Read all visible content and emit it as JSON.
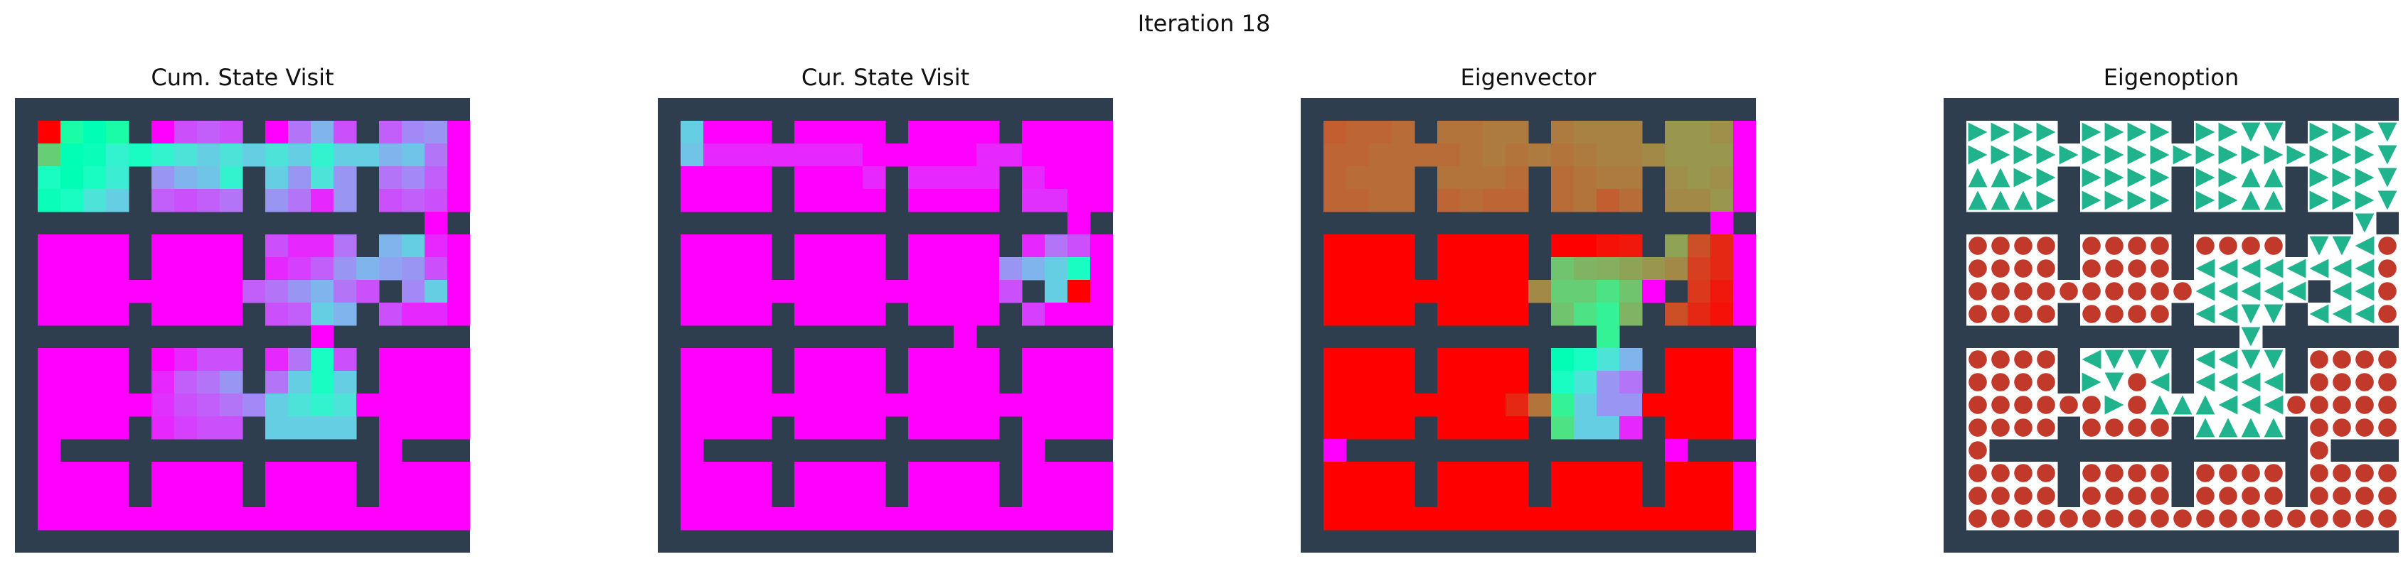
{
  "figure": {
    "suptitle": "Iteration 18"
  },
  "colors": {
    "wall": "#2f3e4f",
    "background": "#ffffff",
    "option_marker": "#1fb38e",
    "terminate_marker": "#c0392b"
  },
  "chart_data": [
    {
      "type": "heatmap",
      "title": "Cum. State Visit",
      "colormap": "rainbow",
      "grid": {
        "rows": 20,
        "cols": 20
      },
      "values": [
        [
          0,
          0,
          0,
          0,
          0,
          0,
          0,
          0,
          0,
          0,
          0,
          0,
          0,
          0,
          0,
          0,
          0,
          0,
          0,
          0
        ],
        [
          0,
          1.0,
          0.55,
          0.5,
          0.55,
          0,
          0,
          0.1,
          0.12,
          0.1,
          0,
          0,
          0.15,
          0.25,
          0.1,
          0,
          0.12,
          0.18,
          0.2,
          0
        ],
        [
          0,
          0.7,
          0.5,
          0.48,
          0.4,
          0.45,
          0.4,
          0.35,
          0.3,
          0.35,
          0.3,
          0.35,
          0.3,
          0.4,
          0.3,
          0.3,
          0.25,
          0.28,
          0.15,
          0
        ],
        [
          0,
          0.45,
          0.5,
          0.45,
          0.38,
          0.3,
          0.2,
          0.25,
          0.28,
          0.4,
          0.45,
          0.3,
          0.2,
          0.35,
          0.2,
          0.2,
          0.15,
          0.18,
          0.12,
          0
        ],
        [
          0,
          0.48,
          0.45,
          0.35,
          0.3,
          0,
          0.12,
          0.1,
          0.12,
          0.15,
          0,
          0.2,
          0.15,
          0.05,
          0.2,
          0.15,
          0.1,
          0.12,
          0.1,
          0
        ],
        [
          0,
          0,
          0,
          0,
          0,
          0,
          0,
          0,
          0,
          0,
          0,
          0,
          0,
          0,
          0,
          0,
          0.05,
          0.25,
          0,
          0
        ],
        [
          0,
          0,
          0,
          0,
          0,
          0,
          0,
          0,
          0,
          0,
          0,
          0.1,
          0.05,
          0.05,
          0.15,
          0.2,
          0.25,
          0.3,
          0.05,
          0
        ],
        [
          0,
          0,
          0,
          0,
          0,
          0,
          0,
          0,
          0,
          0,
          0,
          0.05,
          0.08,
          0.12,
          0.2,
          0.25,
          0.22,
          0.2,
          0.1,
          0
        ],
        [
          0,
          0,
          0,
          0,
          0,
          0,
          0,
          0,
          0,
          0,
          0.12,
          0.15,
          0.2,
          0.25,
          0.15,
          0.1,
          0.15,
          0.18,
          0.3,
          0
        ],
        [
          0,
          0,
          0,
          0,
          0,
          0,
          0,
          0,
          0,
          0,
          0,
          0.1,
          0.12,
          0.3,
          0.25,
          0,
          0.1,
          0.05,
          0.05,
          0
        ],
        [
          0,
          0,
          0,
          0,
          0,
          0,
          0,
          0,
          0,
          0,
          0,
          0,
          0,
          0,
          0,
          0,
          0,
          0,
          0,
          0
        ],
        [
          0,
          0,
          0,
          0,
          0,
          0,
          0,
          0.05,
          0.1,
          0.1,
          0,
          0.05,
          0.15,
          0.45,
          0.1,
          0,
          0,
          0,
          0,
          0
        ],
        [
          0,
          0,
          0,
          0,
          0,
          0,
          0.05,
          0.12,
          0.15,
          0.2,
          0,
          0.15,
          0.3,
          0.45,
          0.3,
          0,
          0,
          0,
          0,
          0
        ],
        [
          0,
          0,
          0,
          0,
          0,
          0,
          0.06,
          0.1,
          0.12,
          0.15,
          0.18,
          0.3,
          0.35,
          0.4,
          0.35,
          0,
          0,
          0,
          0,
          0
        ],
        [
          0,
          0,
          0,
          0,
          0,
          0,
          0.05,
          0.08,
          0.1,
          0.1,
          0,
          0.3,
          0.3,
          0.3,
          0.3,
          0,
          0,
          0,
          0,
          0
        ],
        [
          0,
          0,
          0,
          0,
          0,
          0,
          0,
          0,
          0,
          0,
          0,
          0,
          0,
          0,
          0,
          0,
          0,
          0,
          0,
          0
        ],
        [
          0,
          0,
          0,
          0,
          0,
          0,
          0,
          0,
          0,
          0,
          0,
          0,
          0,
          0,
          0,
          0,
          0,
          0,
          0,
          0
        ],
        [
          0,
          0,
          0,
          0,
          0,
          0,
          0,
          0,
          0,
          0,
          0,
          0,
          0,
          0,
          0,
          0,
          0,
          0,
          0,
          0
        ],
        [
          0,
          0,
          0,
          0,
          0,
          0,
          0,
          0,
          0,
          0,
          0,
          0,
          0,
          0,
          0,
          0,
          0,
          0,
          0,
          0
        ],
        [
          0,
          0,
          0,
          0,
          0,
          0,
          0,
          0,
          0,
          0,
          0,
          0,
          0,
          0,
          0,
          0,
          0,
          0,
          0,
          0
        ]
      ]
    },
    {
      "type": "heatmap",
      "title": "Cur. State Visit",
      "colormap": "rainbow",
      "grid": {
        "rows": 20,
        "cols": 20
      },
      "values": [
        [
          0,
          0,
          0,
          0,
          0,
          0,
          0,
          0,
          0,
          0,
          0,
          0,
          0,
          0,
          0,
          0,
          0,
          0,
          0,
          0
        ],
        [
          0,
          0.3,
          0,
          0,
          0,
          0,
          0,
          0,
          0,
          0,
          0,
          0,
          0,
          0,
          0,
          0,
          0,
          0,
          0,
          0
        ],
        [
          0,
          0.28,
          0.05,
          0.05,
          0.05,
          0.05,
          0.05,
          0.05,
          0.05,
          0,
          0,
          0,
          0,
          0,
          0.05,
          0.05,
          0,
          0,
          0,
          0
        ],
        [
          0,
          0,
          0,
          0,
          0,
          0,
          0,
          0,
          0,
          0.05,
          0.05,
          0.05,
          0.05,
          0.05,
          0.05,
          0.05,
          0.05,
          0,
          0,
          0
        ],
        [
          0,
          0,
          0,
          0,
          0,
          0,
          0,
          0,
          0,
          0,
          0,
          0,
          0,
          0,
          0,
          0,
          0.06,
          0.06,
          0,
          0
        ],
        [
          0,
          0,
          0,
          0,
          0,
          0,
          0,
          0,
          0,
          0,
          0,
          0,
          0,
          0,
          0,
          0,
          0,
          0.1,
          0,
          0
        ],
        [
          0,
          0,
          0,
          0,
          0,
          0,
          0,
          0,
          0,
          0,
          0,
          0,
          0,
          0,
          0,
          0,
          0.05,
          0.15,
          0.1,
          0
        ],
        [
          0,
          0,
          0,
          0,
          0,
          0,
          0,
          0,
          0,
          0,
          0,
          0,
          0,
          0,
          0,
          0.2,
          0.25,
          0.3,
          0.45,
          0
        ],
        [
          0,
          0,
          0,
          0,
          0,
          0,
          0,
          0,
          0,
          0,
          0,
          0,
          0,
          0,
          0,
          0.1,
          0.3,
          0.3,
          1.0,
          0
        ],
        [
          0,
          0,
          0,
          0,
          0,
          0,
          0,
          0,
          0,
          0,
          0,
          0,
          0,
          0,
          0,
          0,
          0.08,
          0,
          0,
          0
        ],
        [
          0,
          0,
          0,
          0,
          0,
          0,
          0,
          0,
          0,
          0,
          0,
          0,
          0,
          0,
          0,
          0,
          0,
          0,
          0,
          0
        ],
        [
          0,
          0,
          0,
          0,
          0,
          0,
          0,
          0,
          0,
          0,
          0,
          0,
          0,
          0,
          0,
          0,
          0,
          0,
          0,
          0
        ],
        [
          0,
          0,
          0,
          0,
          0,
          0,
          0,
          0,
          0,
          0,
          0,
          0,
          0,
          0,
          0,
          0,
          0,
          0,
          0,
          0
        ],
        [
          0,
          0,
          0,
          0,
          0,
          0,
          0,
          0,
          0,
          0,
          0,
          0,
          0,
          0,
          0,
          0,
          0,
          0,
          0,
          0
        ],
        [
          0,
          0,
          0,
          0,
          0,
          0,
          0,
          0,
          0,
          0,
          0,
          0,
          0,
          0,
          0,
          0,
          0,
          0,
          0,
          0
        ],
        [
          0,
          0,
          0,
          0,
          0,
          0,
          0,
          0,
          0,
          0,
          0,
          0,
          0,
          0,
          0,
          0,
          0,
          0,
          0,
          0
        ],
        [
          0,
          0,
          0,
          0,
          0,
          0,
          0,
          0,
          0,
          0,
          0,
          0,
          0,
          0,
          0,
          0,
          0,
          0,
          0,
          0
        ],
        [
          0,
          0,
          0,
          0,
          0,
          0,
          0,
          0,
          0,
          0,
          0,
          0,
          0,
          0,
          0,
          0,
          0,
          0,
          0,
          0
        ],
        [
          0,
          0,
          0,
          0,
          0,
          0,
          0,
          0,
          0,
          0,
          0,
          0,
          0,
          0,
          0,
          0,
          0,
          0,
          0,
          0
        ],
        [
          0,
          0,
          0,
          0,
          0,
          0,
          0,
          0,
          0,
          0,
          0,
          0,
          0,
          0,
          0,
          0,
          0,
          0,
          0,
          0
        ]
      ]
    },
    {
      "type": "heatmap",
      "title": "Eigenvector",
      "colormap": "rainbow",
      "grid": {
        "rows": 20,
        "cols": 20
      },
      "values": [
        [
          0,
          0,
          0,
          0,
          0,
          0,
          0,
          0,
          0,
          0,
          0,
          0,
          0,
          0,
          0,
          0,
          0,
          0,
          0,
          0
        ],
        [
          0,
          0.88,
          0.87,
          0.87,
          0.86,
          0,
          0.85,
          0.85,
          0.84,
          0.84,
          0,
          0.84,
          0.83,
          0.83,
          0.83,
          0,
          0.8,
          0.8,
          0.81,
          0
        ],
        [
          0,
          0.87,
          0.87,
          0.86,
          0.86,
          0.86,
          0.86,
          0.85,
          0.84,
          0.85,
          0.84,
          0.85,
          0.84,
          0.83,
          0.83,
          0.82,
          0.8,
          0.8,
          0.8,
          0
        ],
        [
          0,
          0.87,
          0.86,
          0.86,
          0.86,
          0.86,
          0.85,
          0.85,
          0.85,
          0.86,
          0.88,
          0.86,
          0.85,
          0.84,
          0.84,
          0.82,
          0.81,
          0.8,
          0.81,
          0
        ],
        [
          0,
          0.87,
          0.87,
          0.86,
          0.86,
          0,
          0.87,
          0.86,
          0.87,
          0.87,
          0,
          0.86,
          0.85,
          0.88,
          0.86,
          0,
          0.82,
          0.82,
          0.8,
          0
        ],
        [
          0,
          0,
          0,
          0,
          0,
          0,
          0,
          0,
          0,
          0,
          0,
          0,
          0,
          0,
          0,
          0,
          0,
          0.78,
          0,
          0
        ],
        [
          0,
          1.0,
          1.0,
          1.0,
          1.0,
          0,
          1.0,
          1.0,
          1.0,
          1.0,
          0,
          1.0,
          1.0,
          0.98,
          0.97,
          0,
          0.78,
          0.9,
          0.95,
          0
        ],
        [
          0,
          1.0,
          1.0,
          1.0,
          1.0,
          0,
          1.0,
          1.0,
          1.0,
          1.0,
          0,
          0.72,
          0.75,
          0.76,
          0.78,
          0.8,
          0.82,
          0.92,
          0.95,
          0
        ],
        [
          0,
          1.0,
          1.0,
          1.0,
          1.0,
          1.0,
          1.0,
          1.0,
          1.0,
          1.0,
          0.82,
          0.7,
          0.7,
          0.65,
          0.72,
          0,
          0.85,
          0.93,
          0.97,
          0
        ],
        [
          0,
          1.0,
          1.0,
          1.0,
          1.0,
          0,
          1.0,
          1.0,
          1.0,
          1.0,
          0,
          0.72,
          0.65,
          0.6,
          0.75,
          0,
          0.9,
          0.95,
          0.98,
          0
        ],
        [
          0,
          0,
          0,
          0,
          0,
          0,
          0,
          0,
          0,
          0,
          0,
          0,
          0,
          0.6,
          0,
          0,
          0,
          0,
          0,
          0
        ],
        [
          0,
          1.0,
          1.0,
          1.0,
          1.0,
          0,
          1.0,
          1.0,
          1.0,
          1.0,
          0,
          0.5,
          0.45,
          0.35,
          0.25,
          0,
          1.0,
          1.0,
          1.0,
          0
        ],
        [
          0,
          1.0,
          1.0,
          1.0,
          1.0,
          0,
          1.0,
          1.0,
          1.0,
          1.0,
          0,
          0.45,
          0.35,
          0.2,
          0.15,
          0,
          1.0,
          1.0,
          1.0,
          0
        ],
        [
          0,
          1.0,
          1.0,
          1.0,
          1.0,
          1.0,
          1.0,
          1.0,
          1.0,
          0.95,
          0.85,
          0.6,
          0.3,
          0.2,
          0.2,
          1.0,
          1.0,
          1.0,
          1.0,
          0
        ],
        [
          0,
          1.0,
          1.0,
          1.0,
          1.0,
          0,
          1.0,
          1.0,
          1.0,
          1.0,
          0,
          0.65,
          0.3,
          0.3,
          0.05,
          0,
          1.0,
          1.0,
          1.0,
          0
        ],
        [
          0,
          0,
          0,
          0,
          0,
          0,
          0,
          0,
          0,
          0,
          0,
          0,
          0,
          0,
          0,
          0,
          0,
          0,
          0,
          0
        ],
        [
          0,
          1.0,
          1.0,
          1.0,
          1.0,
          0,
          1.0,
          1.0,
          1.0,
          1.0,
          0,
          1.0,
          1.0,
          1.0,
          1.0,
          0,
          1.0,
          1.0,
          1.0,
          0
        ],
        [
          0,
          1.0,
          1.0,
          1.0,
          1.0,
          0,
          1.0,
          1.0,
          1.0,
          1.0,
          0,
          1.0,
          1.0,
          1.0,
          1.0,
          0,
          1.0,
          1.0,
          1.0,
          0
        ],
        [
          0,
          1.0,
          1.0,
          1.0,
          1.0,
          1.0,
          1.0,
          1.0,
          1.0,
          1.0,
          1.0,
          1.0,
          1.0,
          1.0,
          1.0,
          1.0,
          1.0,
          1.0,
          1.0,
          0
        ],
        [
          0,
          0,
          0,
          0,
          0,
          0,
          0,
          0,
          0,
          0,
          0,
          0,
          0,
          0,
          0,
          0,
          0,
          0,
          0,
          0
        ]
      ]
    },
    {
      "type": "table",
      "title": "Eigenoption",
      "grid": {
        "rows": 20,
        "cols": 20
      },
      "legend_symbols": {
        "0": "wall",
        "R": "right",
        "L": "left",
        "U": "up",
        "D": "down",
        "T": "terminate"
      },
      "cells": [
        "00000000000000000000",
        "0RRRR0RRRR0RRDD0RRRD",
        "0RRRRRRRRRRRRRRRRRRD",
        "0UURR0RRRR0RRUU0RRRD",
        "0UUUR0RRRR0RRUU0RRRD",
        "000000000000000000D0",
        "0TTTT0TTTT0TTTT0DDLT",
        "0TTTT0TTTT0LLLLLLLLT",
        "0TTTTTTTTTTLLLLL0LLT",
        "0TTTT0TTTT0LLDD0LLLT",
        "0000000000000D000000",
        "0TTTT0LDDD0LLDD0TTTT",
        "0TTTT0RDTL0LLLL0TTTT",
        "0TTTTTTRTUUULLLTTTTT",
        "0TTTT0TTTT0UUUU0TTTT",
        "0T00000000000000T000",
        "0TTTT0TTTT0TTTT0TTTT",
        "0TTTT0TTTT0TTTT0TTTT",
        "0TTTTTTTTTTTTTTTTTTT",
        "00000000000000000000"
      ]
    }
  ]
}
